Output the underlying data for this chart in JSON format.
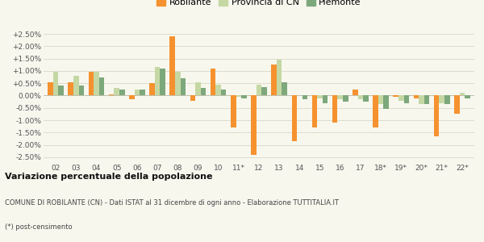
{
  "years": [
    "02",
    "03",
    "04",
    "05",
    "06",
    "07",
    "08",
    "09",
    "10",
    "11*",
    "12",
    "13",
    "14",
    "15",
    "16",
    "17",
    "18*",
    "19*",
    "20*",
    "21*",
    "22*"
  ],
  "robilante": [
    0.55,
    0.55,
    0.95,
    0.05,
    -0.15,
    0.5,
    2.4,
    -0.2,
    1.1,
    -1.3,
    -2.4,
    1.25,
    -1.85,
    -1.3,
    -1.1,
    0.25,
    -1.3,
    -0.05,
    -0.1,
    -1.65,
    -0.75
  ],
  "provincia_cn": [
    0.95,
    0.8,
    0.95,
    0.3,
    0.25,
    1.15,
    0.95,
    0.55,
    0.45,
    -0.05,
    0.45,
    1.45,
    0.0,
    -0.1,
    -0.15,
    -0.15,
    -0.35,
    -0.2,
    -0.35,
    -0.3,
    0.1
  ],
  "piemonte": [
    0.4,
    0.4,
    0.75,
    0.25,
    0.25,
    1.1,
    0.7,
    0.3,
    0.25,
    -0.1,
    0.35,
    0.55,
    -0.15,
    -0.3,
    -0.25,
    -0.25,
    -0.55,
    -0.3,
    -0.35,
    -0.35,
    -0.1
  ],
  "color_robilante": "#f5922f",
  "color_provincia": "#c5d8a4",
  "color_piemonte": "#7da87b",
  "title_bold": "Variazione percentuale della popolazione",
  "subtitle": "COMUNE DI ROBILANTE (CN) - Dati ISTAT al 31 dicembre di ogni anno - Elaborazione TUTTITALIA.IT",
  "footnote": "(*) post-censimento",
  "yticks": [
    -2.5,
    -2.0,
    -1.5,
    -1.0,
    -0.5,
    0.0,
    0.5,
    1.0,
    1.5,
    2.0,
    2.5
  ],
  "ylim": [
    -2.7,
    2.7
  ],
  "bg_color": "#f7f7ee",
  "legend_labels": [
    "Robilante",
    "Provincia di CN",
    "Piemonte"
  ]
}
